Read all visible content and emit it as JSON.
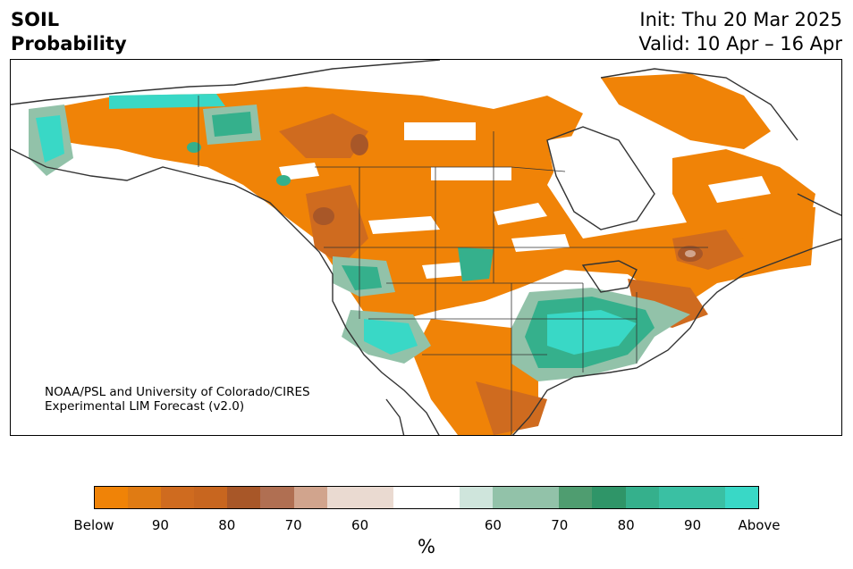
{
  "header": {
    "variable": "SOIL",
    "product": "Probability",
    "init": "Init: Thu 20 Mar 2025",
    "valid": "Valid: 10 Apr – 16 Apr"
  },
  "credit": {
    "line1": "NOAA/PSL and University of Colorado/CIRES",
    "line2": "Experimental LIM Forecast (v2.0)"
  },
  "colorbar": {
    "unit": "%",
    "tick_labels": [
      "Below",
      "90",
      "80",
      "70",
      "60",
      "60",
      "70",
      "80",
      "90",
      "Above"
    ],
    "colors": [
      "#f08307",
      "#e07b13",
      "#cf6b1f",
      "#c8661f",
      "#a85728",
      "#b06f52",
      "#d1a48d",
      "#eadad1",
      "#eadad1",
      "#ffffff",
      "#ffffff",
      "#cfe5dc",
      "#92c2a9",
      "#92c2a9",
      "#4f9d70",
      "#2f9568",
      "#35b08c",
      "#3ac0a3",
      "#3ac0a3",
      "#39d8c6"
    ]
  },
  "map_colors": {
    "below": "#f08307",
    "below_mid": "#cf6b1f",
    "below_dark": "#a85728",
    "below_light": "#d1a48d",
    "above": "#39d8c6",
    "above_mid": "#35b08c",
    "above_dark": "#2f9568",
    "above_light": "#92c2a9"
  }
}
